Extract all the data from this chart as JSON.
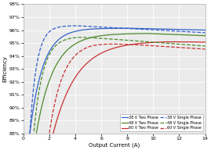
{
  "xlabel": "Output Current (A)",
  "ylabel": "Efficiency",
  "xlim": [
    0,
    14
  ],
  "ylim": [
    88,
    98
  ],
  "yticks": [
    88,
    89,
    90,
    91,
    92,
    93,
    94,
    95,
    96,
    97,
    98
  ],
  "xticks": [
    0,
    2,
    4,
    6,
    8,
    10,
    12,
    14
  ],
  "colors": {
    "38V": "#3060c8",
    "48V": "#4a8a2a",
    "60V": "#c83030"
  },
  "background": "#ebebeb",
  "curves": {
    "38V_2ph": {
      "start": 0.5,
      "k": 1.0,
      "peak": 96.15,
      "droop_start": 8.0,
      "droop": 0.025
    },
    "38V_1ph": {
      "start": 0.5,
      "k": 1.9,
      "peak": 96.35,
      "droop_start": 4.0,
      "droop": 0.055
    },
    "48V_2ph": {
      "start": 1.0,
      "k": 0.75,
      "peak": 95.75,
      "droop_start": 9.5,
      "droop": 0.04
    },
    "48V_1ph": {
      "start": 0.8,
      "k": 1.4,
      "peak": 95.5,
      "droop_start": 4.2,
      "droop": 0.075
    },
    "60V_2ph": {
      "start": 2.3,
      "k": 0.55,
      "peak": 95.15,
      "droop_start": 11.0,
      "droop": 0.025
    },
    "60V_1ph": {
      "start": 2.0,
      "k": 0.95,
      "peak": 95.1,
      "droop_start": 5.2,
      "droop": 0.065
    }
  },
  "legend_entries": [
    {
      "label": "38 V Two Phase",
      "color": "#3060c8",
      "ls": "-"
    },
    {
      "label": "48 V Two Phase",
      "color": "#4a8a2a",
      "ls": "-"
    },
    {
      "label": "60 V Two Phase",
      "color": "#c83030",
      "ls": "-"
    },
    {
      "label": "38 V Single Phase",
      "color": "#3060c8",
      "ls": "--"
    },
    {
      "label": "48 V Single Phase",
      "color": "#4a8a2a",
      "ls": "--"
    },
    {
      "label": "60 V Single Phase",
      "color": "#c83030",
      "ls": "--"
    }
  ]
}
